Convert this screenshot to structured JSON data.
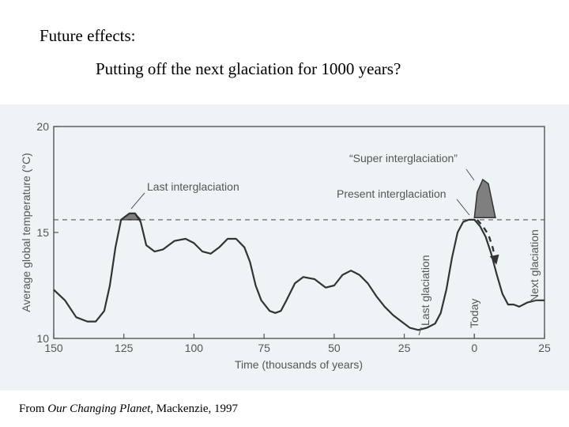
{
  "slide": {
    "heading": "Future effects:",
    "subheading": "Putting off the next glaciation for 1000 years?",
    "source_prefix": "From ",
    "source_title": "Our Changing Planet",
    "source_suffix": ", Mackenzie, 1997"
  },
  "colors": {
    "panel_background": "#eef3f6",
    "curve": "#333333",
    "shaded_peaks": "#7f7f7f",
    "axis_text": "#555555"
  },
  "chart_data": {
    "type": "line",
    "xlabel": "Time (thousands of years)",
    "ylabel": "Average global temperature (°C)",
    "xlim": [
      150,
      -25
    ],
    "ylim": [
      10,
      20
    ],
    "x_ticks": [
      150,
      125,
      100,
      75,
      50,
      25,
      0,
      -25
    ],
    "x_tick_labels": [
      "150",
      "125",
      "100",
      "75",
      "50",
      "25",
      "0",
      "25"
    ],
    "y_ticks": [
      10,
      15,
      20
    ],
    "y_tick_labels": [
      "10",
      "15",
      "20"
    ],
    "grid": false,
    "reference_line": {
      "y": 15.6,
      "style": "dashed"
    },
    "series": [
      {
        "x": [
          150,
          146,
          142,
          138,
          135,
          132,
          130,
          128,
          126,
          123,
          121,
          119,
          117,
          114,
          111,
          107,
          103,
          100,
          97,
          94,
          91,
          88,
          85,
          82,
          80,
          78,
          76,
          73,
          71,
          69,
          67,
          64,
          61,
          57,
          53,
          50,
          47,
          44,
          41,
          38,
          35,
          32,
          29,
          26,
          23,
          20,
          17,
          14,
          12,
          10,
          8,
          6,
          4,
          2,
          1,
          0,
          -2,
          -4,
          -6,
          -8,
          -10,
          -12,
          -14,
          -16,
          -19,
          -22,
          -25
        ],
        "y": [
          12.3,
          11.8,
          11.0,
          10.8,
          10.8,
          11.3,
          12.5,
          14.3,
          15.6,
          15.9,
          15.9,
          15.5,
          14.4,
          14.1,
          14.2,
          14.6,
          14.7,
          14.5,
          14.1,
          14.0,
          14.3,
          14.7,
          14.7,
          14.3,
          13.6,
          12.5,
          11.8,
          11.3,
          11.2,
          11.3,
          11.8,
          12.6,
          12.9,
          12.8,
          12.4,
          12.5,
          13.0,
          13.2,
          13.0,
          12.6,
          12.0,
          11.5,
          11.1,
          10.8,
          10.5,
          10.4,
          10.5,
          10.7,
          11.2,
          12.3,
          13.8,
          15.0,
          15.5,
          15.6,
          15.6,
          15.6,
          15.3,
          14.8,
          14.0,
          13.0,
          12.1,
          11.6,
          11.6,
          11.5,
          11.7,
          11.8,
          11.8
        ]
      }
    ],
    "shaded_regions": [
      {
        "x": [
          126,
          123,
          121,
          119
        ],
        "y": [
          15.6,
          15.9,
          15.9,
          15.6
        ]
      },
      {
        "x": [
          0,
          -1,
          -3,
          -5,
          -7.5
        ],
        "y": [
          15.7,
          16.9,
          17.5,
          17.3,
          15.7
        ]
      }
    ],
    "projection": {
      "x": [
        -1,
        -3,
        -5,
        -6.5,
        -7.5
      ],
      "y": [
        15.6,
        15.3,
        14.9,
        14.3,
        13.7
      ],
      "style": "dashed-arrow"
    },
    "annotations": [
      {
        "text": "Last interglaciation",
        "x": 122,
        "y": 15.9
      },
      {
        "text": "“Super interglaciation”",
        "x": -3,
        "y": 17.5
      },
      {
        "text": "Present interglaciation",
        "x": 0,
        "y": 15.7
      },
      {
        "text": "Last glaciation",
        "x": 20,
        "y": 10.4,
        "orientation": "vertical"
      },
      {
        "text": "Today",
        "x": 0,
        "y": 10.4,
        "orientation": "vertical"
      },
      {
        "text": "Next glaciation",
        "x": -21,
        "y": 11.8,
        "orientation": "vertical"
      }
    ]
  }
}
